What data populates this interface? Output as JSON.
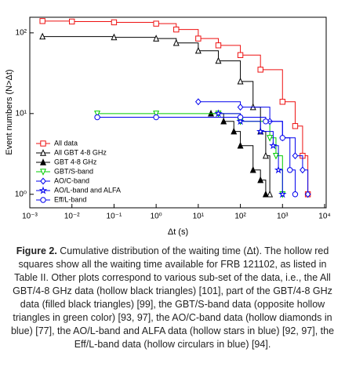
{
  "chart_data": {
    "type": "step",
    "log_x": true,
    "log_y": true,
    "xlabel": "Δt (s)",
    "ylabel": "Event numbers (N>Δt)",
    "xlim": [
      0.001,
      10000
    ],
    "ylim": [
      0.68,
      156
    ],
    "xticks": [
      {
        "value": 0.001,
        "label": "10⁻³"
      },
      {
        "value": 0.01,
        "label": "10⁻²"
      },
      {
        "value": 0.1,
        "label": "10⁻¹"
      },
      {
        "value": 1,
        "label": "10⁰"
      },
      {
        "value": 10,
        "label": "10¹"
      },
      {
        "value": 100,
        "label": "10²"
      },
      {
        "value": 1000,
        "label": "10³"
      },
      {
        "value": 10000,
        "label": "10⁴"
      }
    ],
    "yticks": [
      {
        "value": 1,
        "label": "10⁰"
      },
      {
        "value": 10,
        "label": "10¹"
      },
      {
        "value": 100,
        "label": "10²"
      }
    ],
    "legend": "lower-left",
    "series": [
      {
        "name": "All data",
        "color": "#ee1111",
        "marker": "square",
        "x": [
          0.002,
          0.01,
          0.1,
          1,
          3,
          10,
          30,
          100,
          300,
          1000,
          2000,
          3000,
          4000
        ],
        "values": [
          140,
          138,
          135,
          130,
          110,
          85,
          70,
          53,
          35,
          14,
          7,
          3,
          1
        ]
      },
      {
        "name": "All GBT 4-8 GHz",
        "color": "#000000",
        "marker": "triangle",
        "x": [
          0.002,
          0.1,
          1,
          3,
          10,
          30,
          100,
          200,
          300,
          400,
          500
        ],
        "values": [
          90,
          88,
          85,
          75,
          60,
          45,
          25,
          12,
          6,
          3,
          1
        ]
      },
      {
        "name": "GBT 4-8 GHz",
        "color": "#000000",
        "marker": "triangle-filled",
        "x": [
          20,
          40,
          70,
          100,
          200,
          300,
          400
        ],
        "values": [
          10,
          8,
          6,
          4,
          2,
          1.5,
          1
        ]
      },
      {
        "name": "GBT/S-band",
        "color": "#00cc00",
        "marker": "triangle-down",
        "x": [
          0.04,
          1,
          30,
          100,
          500,
          700,
          1000
        ],
        "values": [
          10,
          10,
          10,
          8,
          5,
          3,
          1
        ]
      },
      {
        "name": "AO/C-band",
        "color": "#0000ee",
        "marker": "diamond",
        "x": [
          10,
          100,
          500,
          1000,
          2000,
          3000,
          4000
        ],
        "values": [
          14,
          12,
          8,
          5,
          3,
          2,
          1
        ]
      },
      {
        "name": "AO/L-band and ALFA",
        "color": "#0000ee",
        "marker": "star",
        "x": [
          30,
          100,
          300,
          600,
          800,
          1000
        ],
        "values": [
          10,
          8,
          6,
          4,
          2,
          1
        ]
      },
      {
        "name": "Eff/L-band",
        "color": "#0000ee",
        "marker": "circle",
        "x": [
          0.04,
          1,
          100,
          400,
          1000,
          1500,
          2000
        ],
        "values": [
          9,
          9,
          9,
          8,
          5,
          2,
          1
        ]
      }
    ]
  },
  "caption": {
    "label": "Figure 2.",
    "text": "Cumulative distribution of the waiting time (Δt). The hollow red squares show all the waiting time available for FRB 121102, as listed in Table II. Other plots correspond to various sub-set of the data, i.e., the All GBT/4-8 GHz data (hollow black triangles) [101], part of the GBT/4-8 GHz data (filled black triangles) [99], the GBT/S-band data (opposite hollow triangles in green color) [93, 97], the AO/C-band data (hollow diamonds in blue) [77], the AO/L-band and ALFA data (hollow stars in blue) [92, 97], the Eff/L-band data (hollow circulars in blue) [94]."
  }
}
